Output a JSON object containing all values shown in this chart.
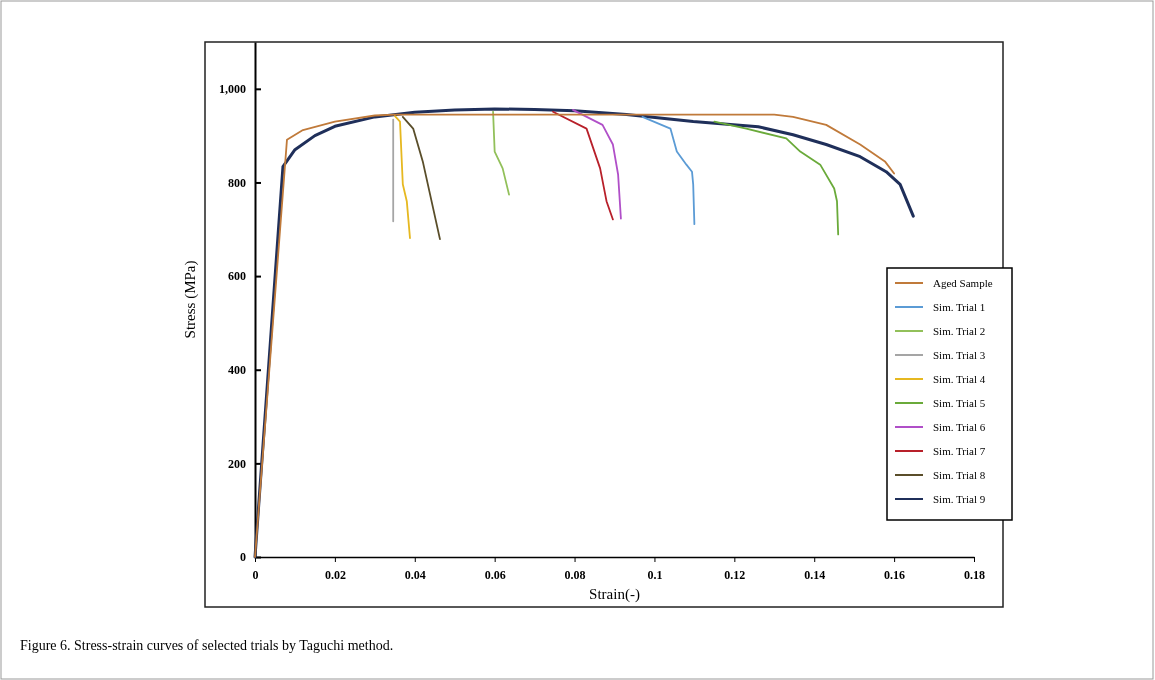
{
  "chart_data": {
    "type": "line",
    "xlabel": "Strain(-)",
    "ylabel": "Stress (MPa)",
    "annotations": [
      "Figure 6. Stress-strain curves of selected trials by Taguchi method."
    ],
    "xlim": [
      0,
      0.18
    ],
    "ylim": [
      0,
      1100
    ],
    "xticks": [
      0,
      0.02,
      0.04,
      0.06,
      0.08,
      0.1,
      0.12,
      0.14,
      0.16,
      0.18
    ],
    "yticks": [
      0,
      200,
      400,
      600,
      800,
      {
        "value": 1000,
        "label": "1,000"
      }
    ],
    "legend": "right",
    "line_style": "solid",
    "series": [
      {
        "name": "Aged Sample",
        "color": "#c07a3a",
        "x": [
          0,
          0.008,
          0.012,
          0.02,
          0.03,
          0.035,
          0.1,
          0.13,
          0.1347,
          0.143,
          0.1515,
          0.1577,
          0.16
        ],
        "values": [
          0,
          891,
          912,
          930,
          943,
          945,
          945,
          945,
          940,
          923,
          881,
          845,
          819
        ]
      },
      {
        "name": "Sim. Trial 1",
        "color": "#5b9bd5",
        "x": [
          0.097,
          0.104,
          0.1056,
          0.108,
          0.1094,
          0.1097,
          0.11
        ],
        "values": [
          940,
          915,
          866,
          838,
          823,
          796,
          711
        ]
      },
      {
        "name": "Sim. Trial 2",
        "color": "#92c05a",
        "x": [
          0.0596,
          0.06,
          0.062,
          0.0636
        ],
        "values": [
          951,
          866,
          830,
          774
        ]
      },
      {
        "name": "Sim. Trial 3",
        "color": "#a5a5a5",
        "x": [
          0.0346,
          0.0346
        ],
        "values": [
          934,
          717
        ]
      },
      {
        "name": "Sim. Trial 4",
        "color": "#e6b820",
        "x": [
          0.035,
          0.0363,
          0.037,
          0.038,
          0.0388
        ],
        "values": [
          942,
          930,
          796,
          760,
          681
        ]
      },
      {
        "name": "Sim. Trial 5",
        "color": "#6aaa3a",
        "x": [
          0.115,
          0.123,
          0.133,
          0.1365,
          0.1415,
          0.145,
          0.1457,
          0.146
        ],
        "values": [
          930,
          915,
          894,
          866,
          838,
          787,
          760,
          689
        ]
      },
      {
        "name": "Sim. Trial 6",
        "color": "#b04fc8",
        "x": [
          0.0796,
          0.087,
          0.0896,
          0.0909,
          0.0916
        ],
        "values": [
          955,
          923,
          881,
          817,
          723
        ]
      },
      {
        "name": "Sim. Trial 7",
        "color": "#b8202a",
        "x": [
          0.0746,
          0.083,
          0.0864,
          0.088,
          0.0896
        ],
        "values": [
          951,
          915,
          830,
          760,
          721
        ]
      },
      {
        "name": "Sim. Trial 8",
        "color": "#5a4e2a",
        "x": [
          0.037,
          0.0396,
          0.042,
          0.0463
        ],
        "values": [
          940,
          915,
          845,
          679
        ]
      },
      {
        "name": "Sim. Trial 9",
        "color": "#1f2f5a",
        "x": [
          0,
          0.007,
          0.01,
          0.015,
          0.02,
          0.03,
          0.04,
          0.05,
          0.06,
          0.07,
          0.08,
          0.093,
          0.1097,
          0.126,
          0.1347,
          0.143,
          0.1515,
          0.158,
          0.1615,
          0.1648
        ],
        "values": [
          0,
          834,
          870,
          900,
          920,
          940,
          950,
          955,
          957,
          956,
          953,
          945,
          930,
          919,
          902,
          881,
          855,
          823,
          796,
          728
        ]
      }
    ]
  }
}
